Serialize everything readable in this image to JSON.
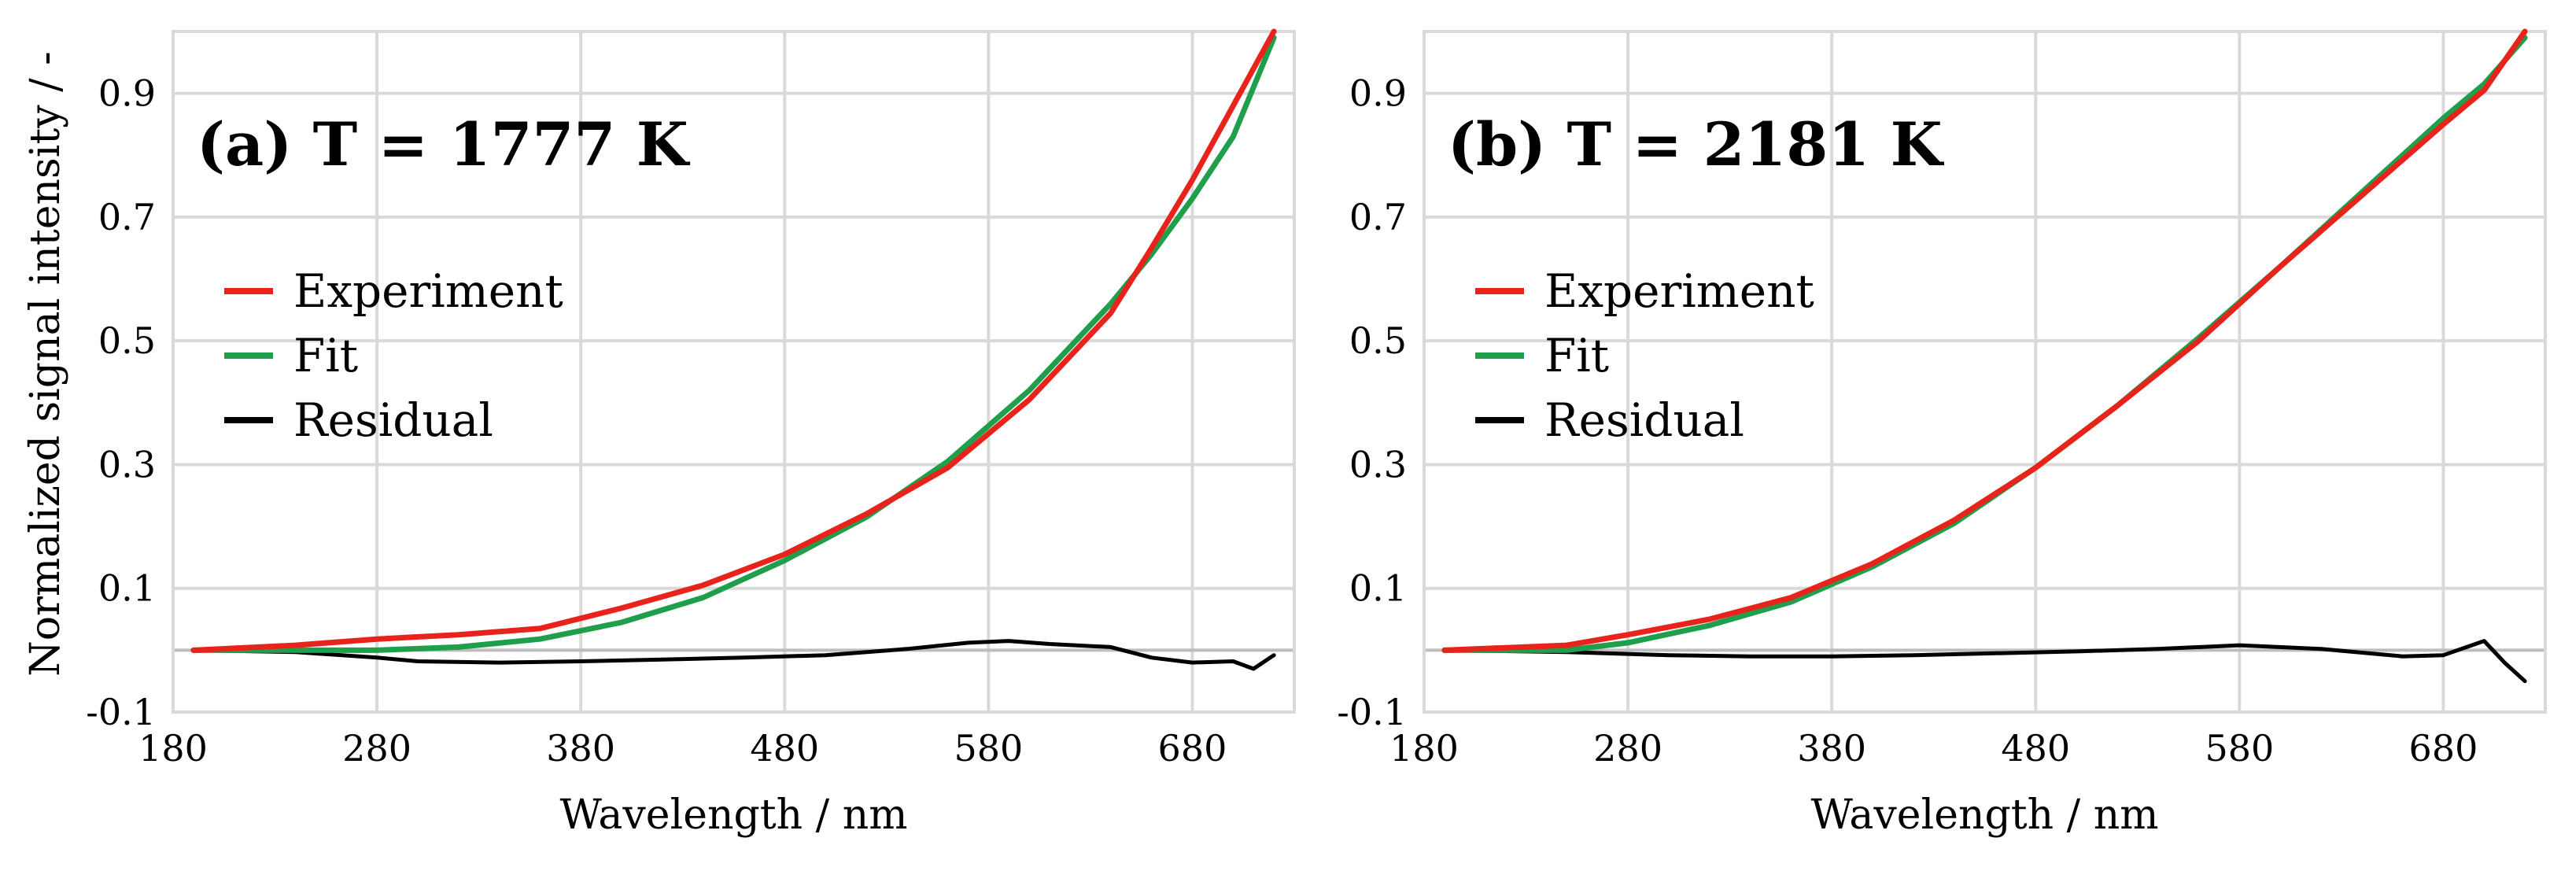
{
  "chart_data": [
    {
      "type": "line",
      "title": "(a)  T = 1777 K",
      "xlabel": "Wavelength / nm",
      "ylabel": "Normalized signal intensity / -",
      "xlim": [
        180,
        730
      ],
      "ylim": [
        -0.1,
        1.0
      ],
      "xticks": [
        "180",
        "280",
        "380",
        "480",
        "580",
        "680"
      ],
      "yticks": [
        "-0.1",
        "0.1",
        "0.3",
        "0.5",
        "0.7",
        "0.9"
      ],
      "grid": true,
      "legend": [
        "Experiment",
        "Fit",
        "Residual"
      ],
      "legend_position": "center-left",
      "series": [
        {
          "name": "Experiment",
          "color": "#e8231c",
          "x": [
            190,
            240,
            280,
            320,
            360,
            400,
            440,
            480,
            520,
            560,
            600,
            640,
            660,
            680,
            700,
            720
          ],
          "y": [
            0.0,
            0.008,
            0.018,
            0.025,
            0.035,
            0.068,
            0.105,
            0.155,
            0.22,
            0.295,
            0.405,
            0.545,
            0.65,
            0.76,
            0.88,
            1.0
          ]
        },
        {
          "name": "Fit",
          "color": "#1f9e4b",
          "x": [
            190,
            240,
            280,
            320,
            360,
            400,
            440,
            480,
            520,
            560,
            600,
            640,
            660,
            680,
            700,
            720
          ],
          "y": [
            0.0,
            0.0,
            0.0,
            0.005,
            0.018,
            0.045,
            0.085,
            0.145,
            0.215,
            0.305,
            0.42,
            0.56,
            0.64,
            0.73,
            0.83,
            0.99
          ]
        },
        {
          "name": "Residual",
          "color": "#000000",
          "x": [
            190,
            240,
            280,
            300,
            340,
            380,
            420,
            460,
            500,
            540,
            570,
            590,
            610,
            640,
            660,
            680,
            700,
            710,
            720
          ],
          "y": [
            0.0,
            -0.003,
            -0.012,
            -0.018,
            -0.02,
            -0.018,
            -0.015,
            -0.012,
            -0.008,
            0.002,
            0.012,
            0.015,
            0.01,
            0.005,
            -0.012,
            -0.02,
            -0.018,
            -0.03,
            -0.008
          ]
        }
      ]
    },
    {
      "type": "line",
      "title": "(b)  T = 2181 K",
      "xlabel": "Wavelength / nm",
      "ylabel": "",
      "xlim": [
        180,
        730
      ],
      "ylim": [
        -0.1,
        1.0
      ],
      "xticks": [
        "180",
        "280",
        "380",
        "480",
        "580",
        "680"
      ],
      "yticks": [
        "-0.1",
        "0.1",
        "0.3",
        "0.5",
        "0.7",
        "0.9"
      ],
      "grid": true,
      "legend": [
        "Experiment",
        "Fit",
        "Residual"
      ],
      "legend_position": "center-left",
      "series": [
        {
          "name": "Experiment",
          "color": "#e8231c",
          "x": [
            190,
            250,
            280,
            320,
            360,
            400,
            440,
            480,
            520,
            560,
            600,
            640,
            680,
            700,
            720
          ],
          "y": [
            0.0,
            0.008,
            0.025,
            0.05,
            0.085,
            0.14,
            0.21,
            0.295,
            0.395,
            0.5,
            0.62,
            0.735,
            0.85,
            0.905,
            1.0
          ]
        },
        {
          "name": "Fit",
          "color": "#1f9e4b",
          "x": [
            190,
            250,
            280,
            320,
            360,
            400,
            440,
            480,
            520,
            560,
            600,
            640,
            680,
            700,
            720
          ],
          "y": [
            0.0,
            0.0,
            0.012,
            0.04,
            0.078,
            0.135,
            0.205,
            0.295,
            0.395,
            0.505,
            0.62,
            0.74,
            0.86,
            0.915,
            0.99
          ]
        },
        {
          "name": "Residual",
          "color": "#000000",
          "x": [
            190,
            250,
            300,
            340,
            380,
            420,
            460,
            500,
            540,
            580,
            620,
            660,
            680,
            700,
            710,
            720
          ],
          "y": [
            0.0,
            -0.003,
            -0.008,
            -0.01,
            -0.01,
            -0.008,
            -0.005,
            -0.002,
            0.002,
            0.008,
            0.002,
            -0.01,
            -0.008,
            0.015,
            -0.02,
            -0.05
          ]
        }
      ]
    }
  ]
}
